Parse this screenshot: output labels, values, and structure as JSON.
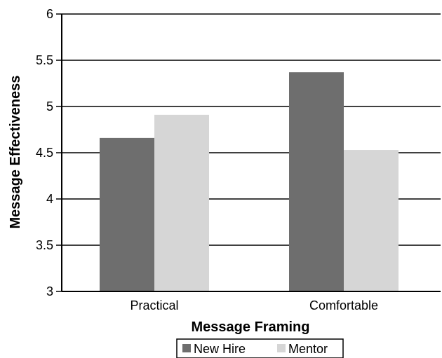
{
  "chart_data": {
    "type": "bar",
    "title": "",
    "xlabel": "Message Framing",
    "ylabel": "Message Effectiveness",
    "categories": [
      "Practical",
      "Comfortable"
    ],
    "series": [
      {
        "name": "New Hire",
        "values": [
          4.66,
          5.37
        ],
        "color": "#6e6e6e"
      },
      {
        "name": "Mentor",
        "values": [
          4.91,
          4.53
        ],
        "color": "#d6d6d6"
      }
    ],
    "ylim": [
      3,
      6
    ],
    "yticks": [
      "3",
      "3.5",
      "4",
      "4.5",
      "5",
      "5.5",
      "6"
    ],
    "grid": true,
    "legend_position": "bottom"
  }
}
